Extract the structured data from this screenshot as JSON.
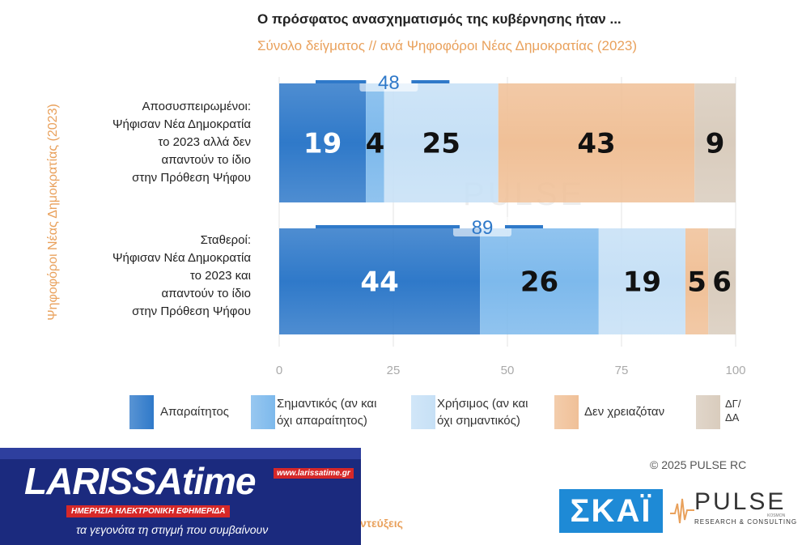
{
  "chart_data": {
    "type": "bar",
    "orientation": "horizontal",
    "stacked": true,
    "title": "Ο πρόσφατος ανασχηματισμός της κυβέρνησης ήταν ...",
    "subtitle": "Σύνολο δείγματος // ανά Ψηφοφόροι Νέας Δημοκρατίας (2023)",
    "ylabel": "Ψηφοφόροι Νέας Δημοκρατίας (2023)",
    "categories": [
      [
        "Αποσυσπειρωμένοι:",
        "Ψήφισαν Νέα Δημοκρατία",
        "το 2023 αλλά δεν",
        "απαντούν το ίδιο",
        "στην Πρόθεση Ψήφου"
      ],
      [
        "Σταθεροί:",
        "Ψήφισαν Νέα Δημοκρατία",
        "το 2023 και",
        "απαντούν το ίδιο",
        "στην Πρόθεση Ψήφου"
      ]
    ],
    "series": [
      {
        "name": "Απαραίτητος",
        "values": [
          19,
          44
        ],
        "color": "#2f79c9"
      },
      {
        "name": "Σημαντικός (αν και όχι απαραίτητος)",
        "values": [
          4,
          26
        ],
        "color": "#7db9ec"
      },
      {
        "name": "Χρήσιμος (αν και όχι σημαντικός)",
        "values": [
          25,
          19
        ],
        "color": "#c6e0f6"
      },
      {
        "name": "Δεν χρειαζόταν",
        "values": [
          43,
          5
        ],
        "color": "#f0c097"
      },
      {
        "name": "ΔΓ/ΔΑ",
        "values": [
          9,
          6
        ],
        "color": "#d9ccbd"
      }
    ],
    "group_totals": [
      48,
      89
    ],
    "xlim": [
      0,
      100
    ],
    "xticks": [
      0,
      25,
      50,
      75,
      100
    ],
    "legend_position": "bottom"
  },
  "copyright": "© 2025 PULSE RC",
  "footer_text": "ντεύξεις",
  "logos": {
    "larissa_main": "LARISSAtime",
    "larissa_url": "www.larissatime.gr",
    "larissa_sub": "ΗΜΕΡΗΣΙΑ ΗΛΕΚΤΡΟΝΙΚΗ ΕΦΗΜΕΡΙΔΑ",
    "larissa_tag": "τα γεγονότα τη στιγμή που συμβαίνουν",
    "skai": "ΣΚΑΪ",
    "pulse": "PULSE",
    "pulse_sub": "RESEARCH & CONSULTING",
    "pulse_kosmon": "KOSMON"
  },
  "watermark": "PULSE"
}
